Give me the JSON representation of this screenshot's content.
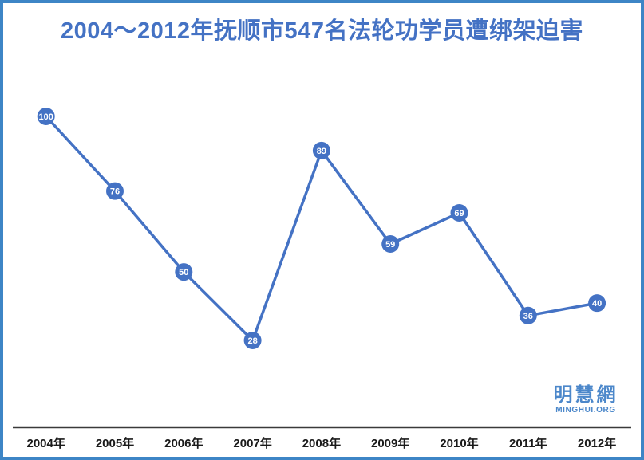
{
  "frame": {
    "border_color": "#3d85c6",
    "background_color": "#ffffff"
  },
  "header": {
    "title": "2004～2012年抚顺市547名法轮功学员遭绑架迫害",
    "title_color": "#4472c4"
  },
  "logo": {
    "chinese": "明慧網",
    "english": "MINGHUI.ORG",
    "color": "#4b87ca"
  },
  "chart_data": {
    "type": "line",
    "title": "2004～2012年抚顺市547名法轮功学员遭绑架迫害",
    "categories": [
      "2004年",
      "2005年",
      "2006年",
      "2007年",
      "2008年",
      "2009年",
      "2010年",
      "2011年",
      "2012年"
    ],
    "values": [
      100,
      76,
      50,
      28,
      89,
      59,
      69,
      36,
      40
    ],
    "total_in_title": 547,
    "xlabel": "",
    "ylabel": "",
    "ylim": [
      0,
      100
    ],
    "grid": false,
    "legend": false,
    "data_labels": "on-marker",
    "line_color": "#4472c4",
    "marker_color": "#4472c4",
    "marker_label_color": "#ffffff",
    "axis_line_color": "#3a3a3a"
  }
}
